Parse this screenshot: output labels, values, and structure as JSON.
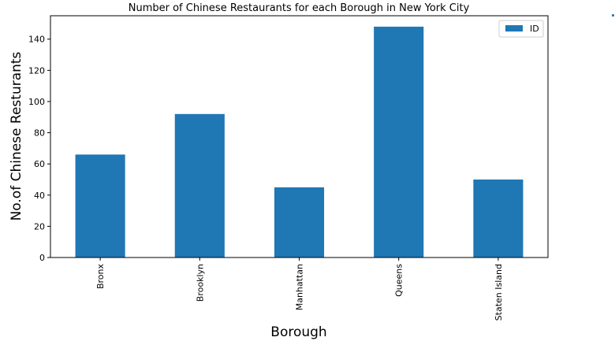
{
  "chart_data": {
    "type": "bar",
    "title": "Number of Chinese Restaurants for each Borough in New York City",
    "xlabel": "Borough",
    "ylabel": "No.of Chinese Resturants",
    "categories": [
      "Bronx",
      "Brooklyn",
      "Manhattan",
      "Queens",
      "Staten Island"
    ],
    "series": [
      {
        "name": "ID",
        "values": [
          66,
          92,
          45,
          148,
          50
        ]
      }
    ],
    "ylim": [
      0,
      155
    ],
    "yticks": [
      0,
      20,
      40,
      60,
      80,
      100,
      120,
      140
    ],
    "ytick_labels": [
      "0",
      "20",
      "40",
      "60",
      "80",
      "100",
      "120",
      "140"
    ],
    "bar_color": "#1f77b4",
    "legend_position": "top-right",
    "grid": false,
    "xtick_rotation": "vertical"
  }
}
